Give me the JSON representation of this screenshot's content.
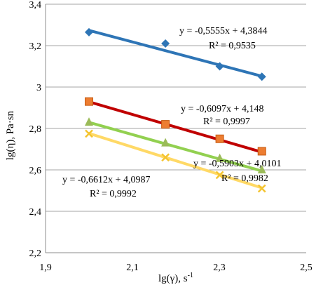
{
  "chart_data": {
    "type": "scatter",
    "xlabel_main": "lg(γ), s",
    "xlabel_sup": "-1",
    "ylabel": "lg(η), Pa·sn",
    "xlim": [
      1.9,
      2.5
    ],
    "ylim": [
      2.2,
      3.4
    ],
    "x_ticks": [
      "1,9",
      "2,1",
      "2,3",
      "2,5"
    ],
    "y_ticks": [
      "2,2",
      "2,4",
      "2,6",
      "2,8",
      "3",
      "3,2",
      "3,4"
    ],
    "grid": "horizontal",
    "series": [
      {
        "color": "#2E75B6",
        "marker": "diamond",
        "x": [
          2.0,
          2.176,
          2.301,
          2.398
        ],
        "y": [
          3.265,
          3.21,
          3.1,
          3.05
        ],
        "trend": {
          "slope": -0.5555,
          "intercept": 4.3844
        },
        "equation": "y = -0,5555x + 4,3844",
        "r2": "R² = 0,9535"
      },
      {
        "color": "#C00000",
        "marker": "square",
        "marker_color": "#ED7D31",
        "x": [
          2.0,
          2.176,
          2.301,
          2.398
        ],
        "y": [
          2.93,
          2.82,
          2.75,
          2.69
        ],
        "trend": {
          "slope": -0.6097,
          "intercept": 4.148
        },
        "equation": "y = -0,6097x + 4,148",
        "r2": "R² = 0,9997"
      },
      {
        "color": "#92D050",
        "marker": "triangle",
        "marker_color": "#9BBB59",
        "x": [
          2.0,
          2.176,
          2.301,
          2.398
        ],
        "y": [
          2.83,
          2.73,
          2.655,
          2.6
        ],
        "trend": {
          "slope": -0.5903,
          "intercept": 4.0101
        },
        "equation": "y = -0,5903x + 4,0101",
        "r2": "R² = 0,9982"
      },
      {
        "color": "#FFD966",
        "marker": "x",
        "marker_color": "#F4C430",
        "x": [
          2.0,
          2.176,
          2.301,
          2.398
        ],
        "y": [
          2.775,
          2.66,
          2.575,
          2.51
        ],
        "trend": {
          "slope": -0.6612,
          "intercept": 4.0987
        },
        "equation": "y = -0,6612x + 4,0987",
        "r2": "R² = 0,9992"
      }
    ]
  }
}
